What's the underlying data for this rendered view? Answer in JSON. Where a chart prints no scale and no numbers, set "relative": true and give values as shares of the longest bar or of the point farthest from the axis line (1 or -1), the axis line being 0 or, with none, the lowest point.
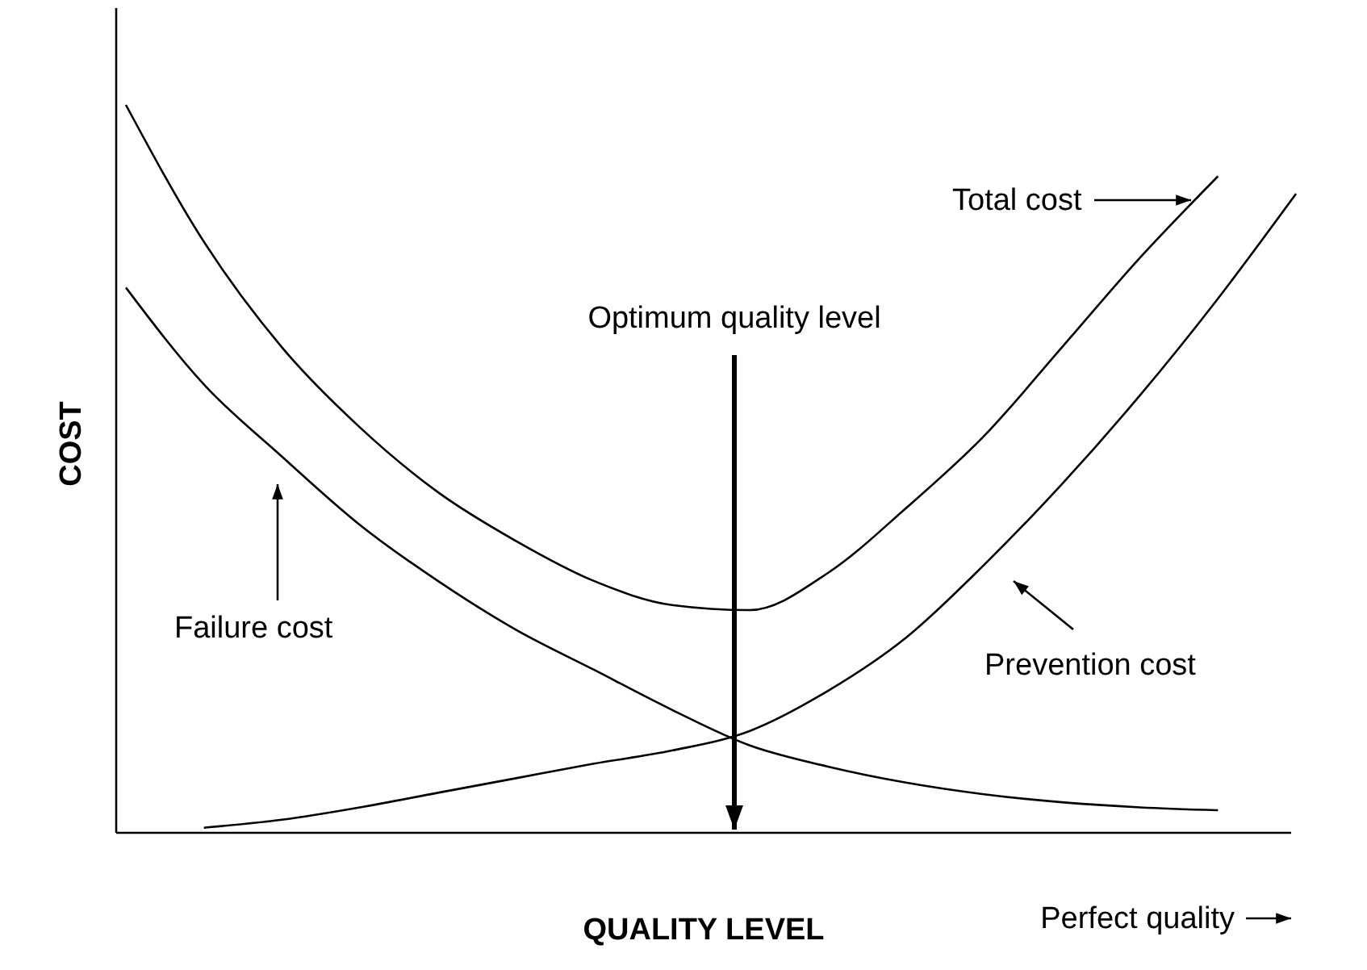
{
  "chart_data": {
    "type": "line",
    "relative": true,
    "xlabel": "QUALITY LEVEL",
    "ylabel": "COST",
    "marker": "none",
    "line_style": "solid",
    "categories": [
      null,
      null,
      null,
      null,
      null,
      null,
      null,
      null,
      null,
      null,
      null,
      null,
      null,
      null,
      null,
      null
    ],
    "series": [
      {
        "name": "Total cost",
        "color": "#000000",
        "values": [
          1,
          0.812,
          0.667,
          0.557,
          0.468,
          0.401,
          0.346,
          0.313,
          0.306,
          0.357,
          0.446,
          0.545,
          0.667,
          0.79,
          0.902,
          null
        ]
      },
      {
        "name": "Failure cost",
        "color": "#000000",
        "values": [
          0.749,
          0.616,
          0.517,
          0.423,
          0.346,
          0.279,
          0.224,
          0.169,
          0.12,
          0.091,
          0.069,
          0.053,
          0.042,
          0.035,
          0.031,
          null
        ]
      },
      {
        "name": "Prevention cost",
        "color": "#000000",
        "values": [
          null,
          0.007,
          0.018,
          0.035,
          0.055,
          0.075,
          0.095,
          0.113,
          0.14,
          0.195,
          0.268,
          0.368,
          0.479,
          0.601,
          0.734,
          0.878
        ]
      }
    ],
    "annotations": [
      "Optimum quality level",
      "Perfect quality"
    ]
  }
}
